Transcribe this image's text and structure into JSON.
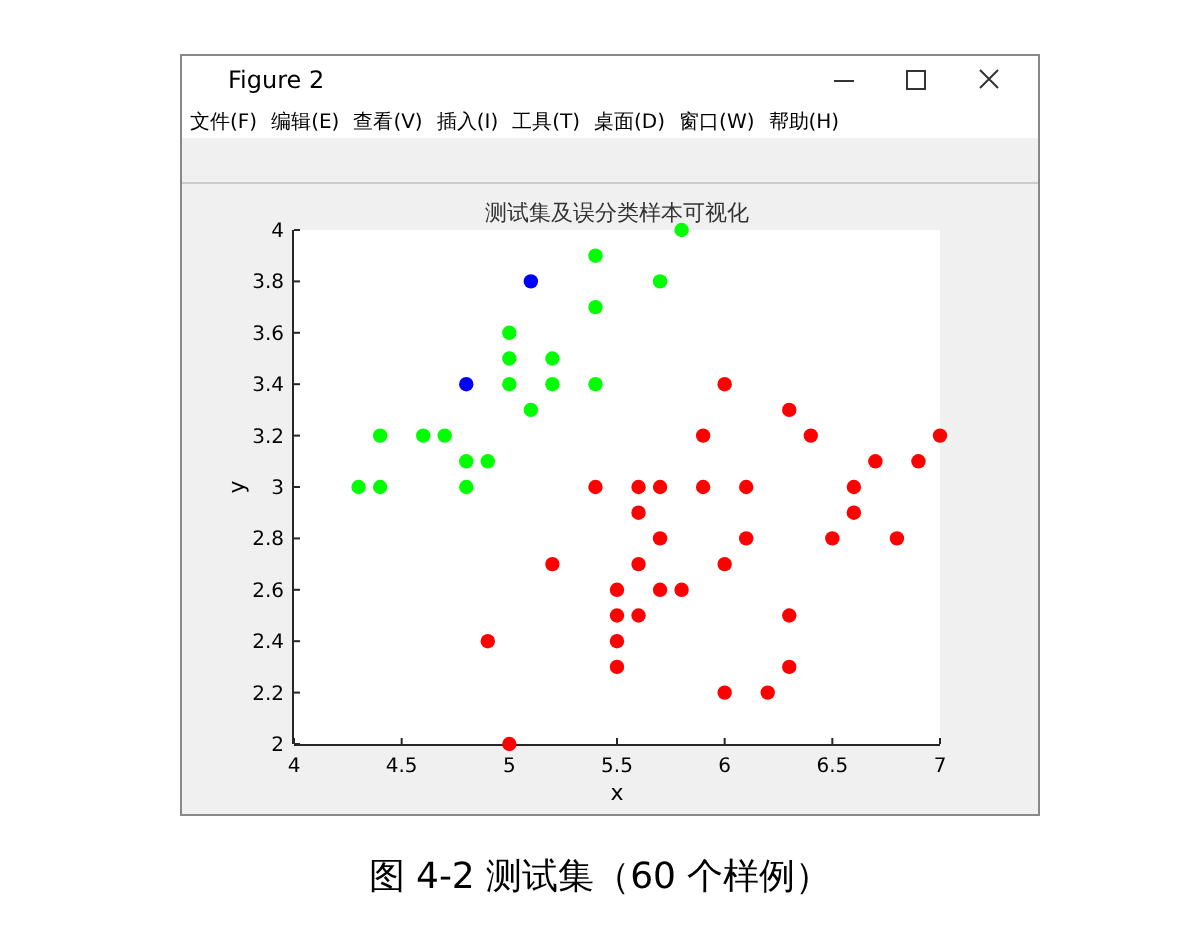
{
  "chart_data": {
    "type": "scatter",
    "title": "测试集及误分类样本可视化",
    "xlabel": "x",
    "ylabel": "y",
    "xlim": [
      4,
      7
    ],
    "ylim": [
      2,
      4
    ],
    "xticks": [
      4,
      4.5,
      5,
      5.5,
      6,
      6.5,
      7
    ],
    "yticks": [
      2,
      2.2,
      2.4,
      2.6,
      2.8,
      3,
      3.2,
      3.4,
      3.6,
      3.8,
      4
    ],
    "marker": "circle",
    "series": [
      {
        "color": "#00ff00",
        "x": [
          4.3,
          4.4,
          4.4,
          4.6,
          4.7,
          4.8,
          4.9,
          4.8,
          5.0,
          5.0,
          5.0,
          5.1,
          5.2,
          5.2,
          5.4,
          5.4,
          5.4,
          5.7,
          5.8
        ],
        "values": [
          3.0,
          3.0,
          3.2,
          3.2,
          3.2,
          3.1,
          3.1,
          3.0,
          3.6,
          3.5,
          3.4,
          3.3,
          3.5,
          3.4,
          3.9,
          3.7,
          3.4,
          3.8,
          4.0
        ]
      },
      {
        "color": "#0000ff",
        "x": [
          4.8,
          5.1
        ],
        "values": [
          3.4,
          3.8
        ]
      },
      {
        "color": "#ff0000",
        "x": [
          6.0,
          6.3,
          5.9,
          6.4,
          7.0,
          6.7,
          6.9,
          5.4,
          5.6,
          5.7,
          5.9,
          6.1,
          6.6,
          5.6,
          6.6,
          5.7,
          6.1,
          6.5,
          6.8,
          5.2,
          5.6,
          6.0,
          5.5,
          5.7,
          5.8,
          5.5,
          5.6,
          6.3,
          5.5,
          4.9,
          5.5,
          6.3,
          6.0,
          6.2,
          5.0
        ],
        "values": [
          3.4,
          3.3,
          3.2,
          3.2,
          3.2,
          3.1,
          3.1,
          3.0,
          3.0,
          3.0,
          3.0,
          3.0,
          3.0,
          2.9,
          2.9,
          2.8,
          2.8,
          2.8,
          2.8,
          2.7,
          2.7,
          2.7,
          2.6,
          2.6,
          2.6,
          2.5,
          2.5,
          2.5,
          2.4,
          2.4,
          2.3,
          2.3,
          2.2,
          2.2,
          2.0
        ]
      }
    ],
    "annotations": [
      "Figure 2",
      "文件(F)",
      "编辑(E)",
      "查看(V)",
      "插入(I)",
      "工具(T)",
      "桌面(D)",
      "窗口(W)",
      "帮助(H)",
      "图 4-2 测试集（60 个样例）"
    ]
  }
}
